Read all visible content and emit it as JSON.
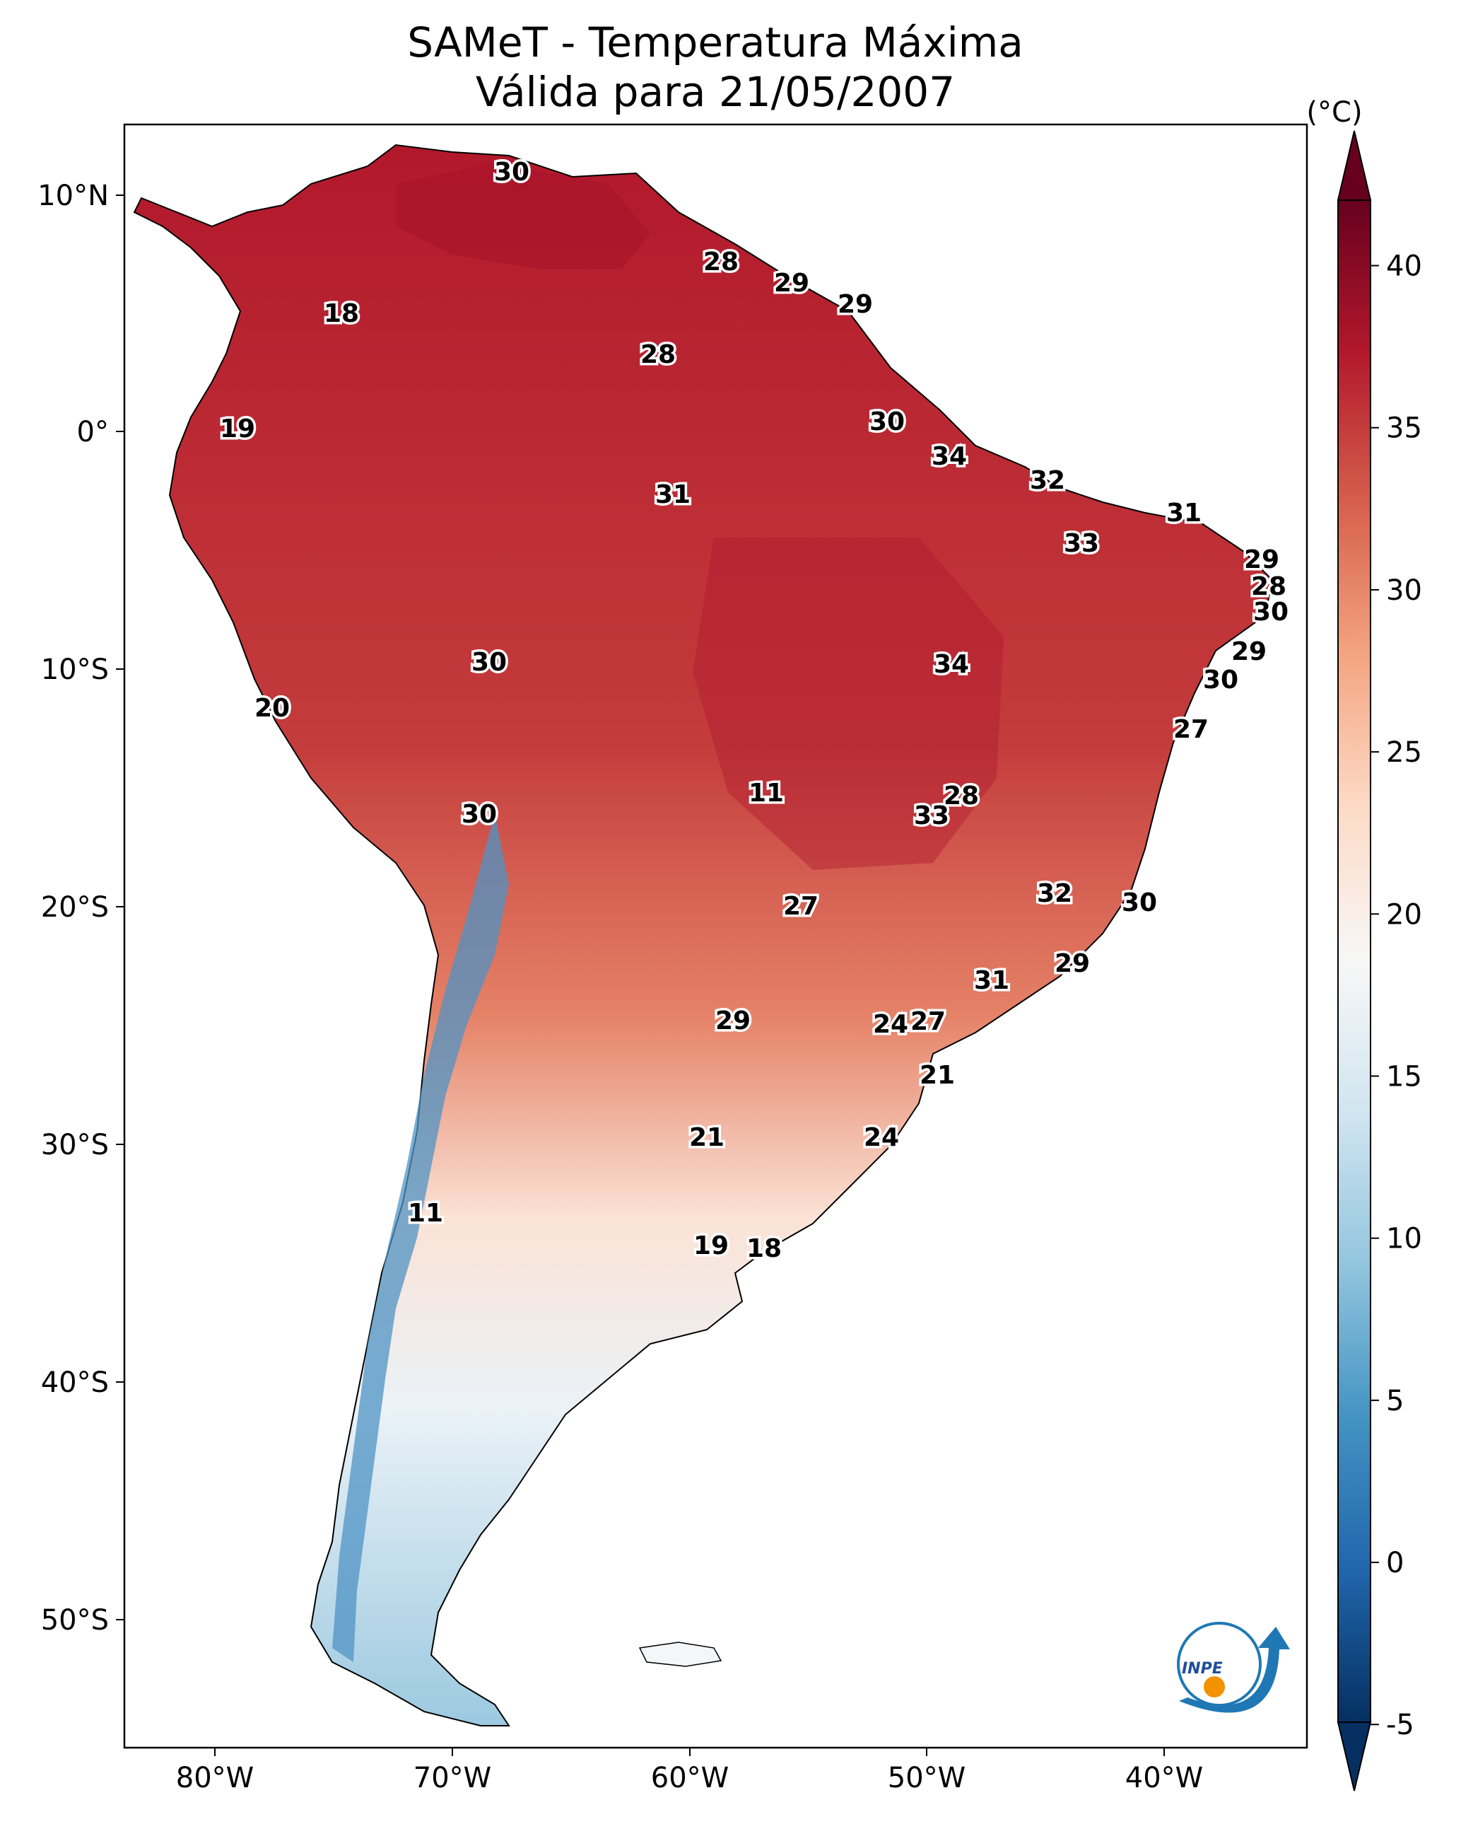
{
  "title": {
    "line1": "SAMeT - Temperatura Máxima",
    "line2": "Válida para 21/05/2007"
  },
  "map": {
    "lat_ticks": [
      "10°N",
      "0°",
      "10°S",
      "20°S",
      "30°S",
      "40°S",
      "50°S"
    ],
    "lon_ticks": [
      "80°W",
      "70°W",
      "60°W",
      "50°W",
      "40°W"
    ]
  },
  "colorbar": {
    "unit": "(°C)",
    "min": -5,
    "max": 40,
    "ticks": [
      "40",
      "35",
      "30",
      "25",
      "20",
      "15",
      "10",
      "5",
      "0",
      "-5"
    ],
    "colors": [
      "#67001f",
      "#b2182b",
      "#d6604d",
      "#f4a582",
      "#fddbc7",
      "#f7f7f7",
      "#d1e5f0",
      "#92c5de",
      "#4393c3",
      "#2166ac",
      "#053061"
    ]
  },
  "station_values": [
    "30",
    "28",
    "29",
    "29",
    "18",
    "28",
    "19",
    "30",
    "34",
    "32",
    "31",
    "31",
    "33",
    "29",
    "28",
    "30",
    "29",
    "30",
    "27",
    "34",
    "30",
    "20",
    "30",
    "11",
    "28",
    "33",
    "32",
    "30",
    "27",
    "29",
    "31",
    "29",
    "27",
    "21",
    "24",
    "21",
    "24",
    "11",
    "19",
    "18"
  ],
  "logo": {
    "text": "INPE"
  }
}
